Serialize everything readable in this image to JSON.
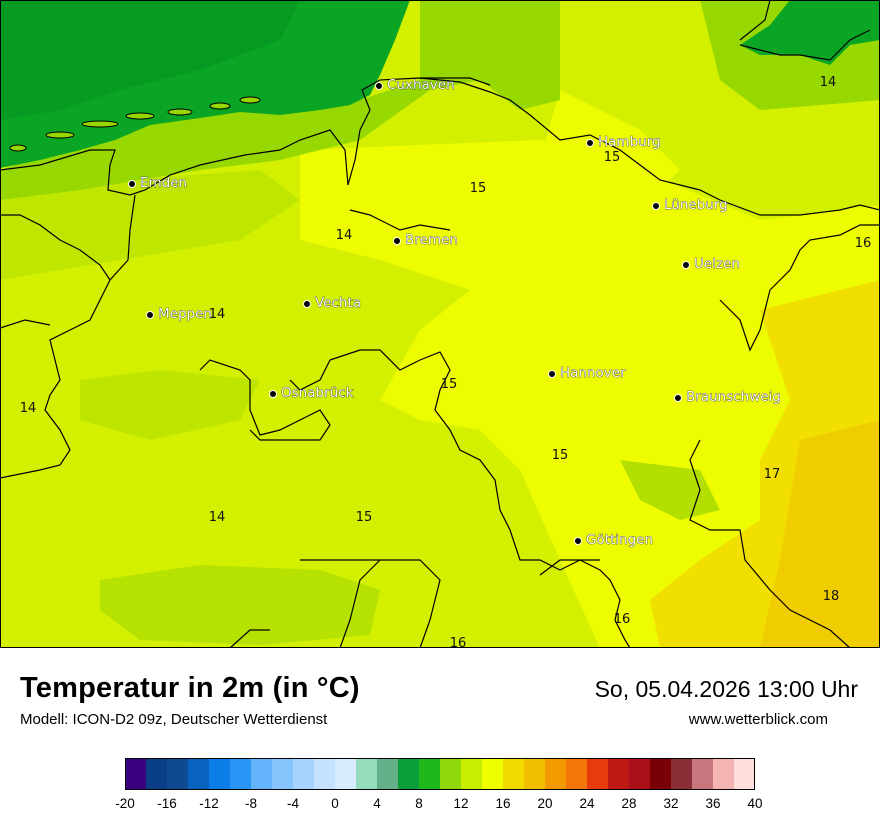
{
  "map": {
    "cities": [
      {
        "name": "Cuxhaven"
      },
      {
        "name": "Hamburg"
      },
      {
        "name": "Emden"
      },
      {
        "name": "Lüneburg"
      },
      {
        "name": "Bremen"
      },
      {
        "name": "Uelzen"
      },
      {
        "name": "Vechta"
      },
      {
        "name": "Meppen"
      },
      {
        "name": "Hannover"
      },
      {
        "name": "Osnabrück"
      },
      {
        "name": "Braunschweig"
      },
      {
        "name": "Göttingen"
      }
    ],
    "temperature_labels": [
      "14",
      "15",
      "15",
      "16",
      "14",
      "14",
      "15",
      "14",
      "15",
      "17",
      "14",
      "15",
      "18",
      "16",
      "16"
    ]
  },
  "footer": {
    "title": "Temperatur in 2m (in °C)",
    "subtitle": "Modell: ICON-D2 09z, Deutscher Wetterdienst",
    "datetime": "So, 05.04.2026 13:00 Uhr",
    "website": "www.wetterblick.com"
  },
  "color_scale": {
    "unit": "°C",
    "colors": [
      "#3b0080",
      "#0a3f87",
      "#0d4a8f",
      "#0a62c0",
      "#0a7ee6",
      "#2996f5",
      "#63b4fb",
      "#86c4fd",
      "#a7d4fe",
      "#c4e2fe",
      "#d9ecfe",
      "#95dcbc",
      "#63b18a",
      "#0a9f3a",
      "#1fb71a",
      "#8ed80a",
      "#c9ed00",
      "#f0ff00",
      "#f0da00",
      "#f2be00",
      "#f29a00",
      "#f2760a",
      "#e83a0a",
      "#c01a14",
      "#a8101a",
      "#7a0008",
      "#8a2f38",
      "#c6767c",
      "#f4b4b4",
      "#ffdede"
    ],
    "tick_labels": [
      "-20",
      "-16",
      "-12",
      "-8",
      "-4",
      "0",
      "4",
      "8",
      "12",
      "16",
      "20",
      "24",
      "28",
      "32",
      "36",
      "40"
    ]
  }
}
